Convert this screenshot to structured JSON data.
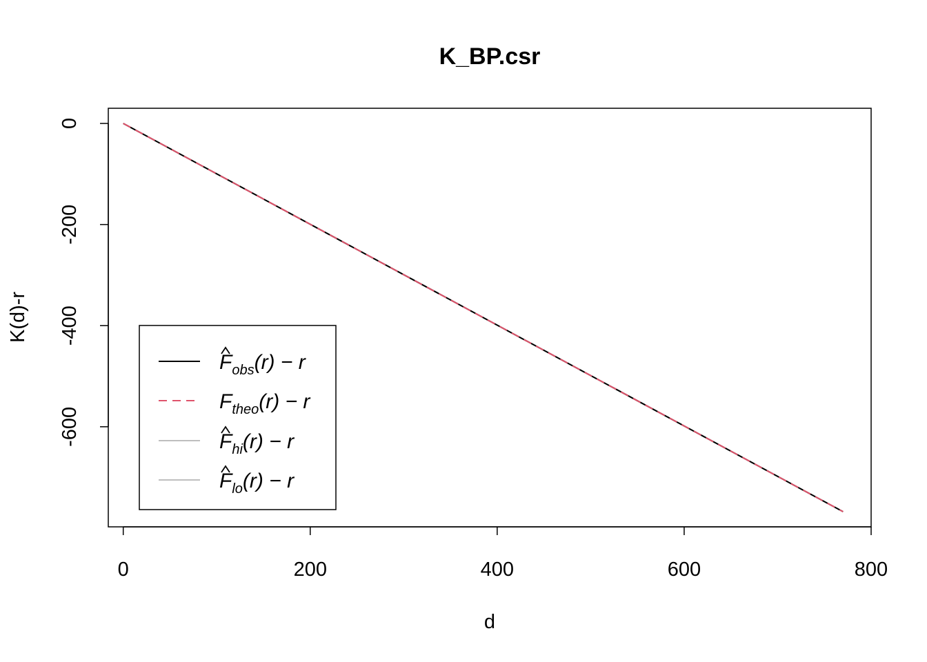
{
  "chart_data": {
    "type": "line",
    "title": "K_BP.csr",
    "xlabel": "d",
    "ylabel": "K(d)-r",
    "xlim": [
      -16,
      800
    ],
    "ylim": [
      -798,
      30
    ],
    "x_ticks": [
      0,
      200,
      400,
      600,
      800
    ],
    "x_tick_labels": [
      "0",
      "200",
      "400",
      "600",
      "800"
    ],
    "y_ticks": [
      0,
      -200,
      -400,
      -600
    ],
    "y_tick_labels": [
      "0",
      "-200",
      "-400",
      "-600"
    ],
    "grid": false,
    "legend_position": "bottom-left",
    "series": [
      {
        "key": "obs",
        "base": "F",
        "hat": true,
        "sub": "obs",
        "tail": "(r) − r",
        "color": "#000000",
        "dash": "none",
        "x": [
          0,
          770
        ],
        "y": [
          0,
          -768
        ]
      },
      {
        "key": "theo",
        "base": "F",
        "hat": false,
        "sub": "theo",
        "tail": "(r) − r",
        "color": "#DF536B",
        "dash": "dashed",
        "x": [
          0,
          770
        ],
        "y": [
          0,
          -768
        ]
      },
      {
        "key": "hi",
        "base": "F",
        "hat": true,
        "sub": "hi",
        "tail": "(r) − r",
        "color": "#BEBEBE",
        "dash": "none",
        "x": [
          0,
          770
        ],
        "y": [
          0,
          -768
        ]
      },
      {
        "key": "lo",
        "base": "F",
        "hat": true,
        "sub": "lo",
        "tail": "(r) − r",
        "color": "#BEBEBE",
        "dash": "none",
        "x": [
          0,
          770
        ],
        "y": [
          0,
          -768
        ]
      }
    ]
  }
}
